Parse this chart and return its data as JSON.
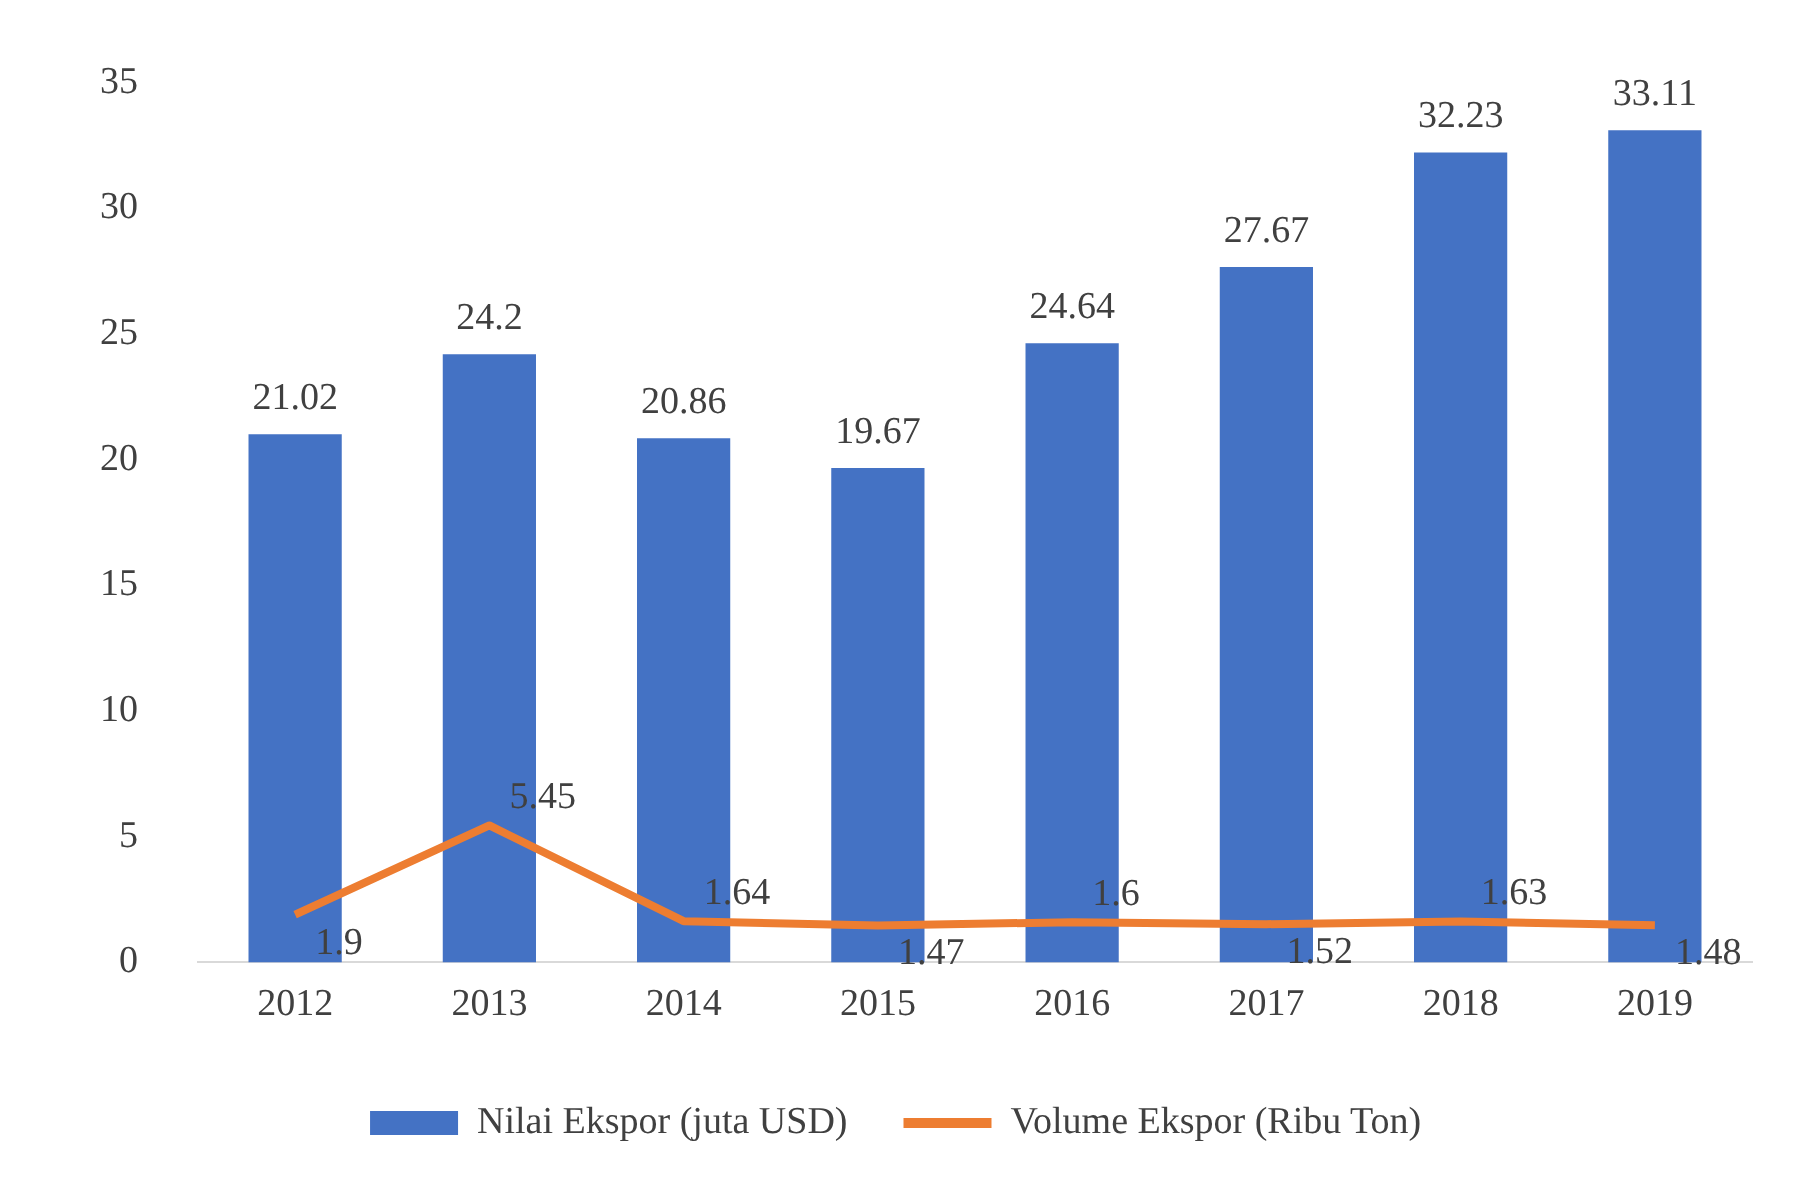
{
  "chart_data": {
    "type": "bar",
    "categories": [
      "2012",
      "2013",
      "2014",
      "2015",
      "2016",
      "2017",
      "2018",
      "2019"
    ],
    "series": [
      {
        "name": "Nilai Ekspor (juta USD)",
        "color": "#4472c4",
        "values": [
          21.02,
          24.2,
          20.86,
          19.67,
          24.64,
          27.67,
          32.23,
          33.11
        ]
      },
      {
        "name": "Volume Ekspor (Ribu Ton)",
        "type": "line",
        "color": "#ed7d31",
        "values": [
          1.9,
          5.45,
          1.64,
          1.47,
          1.6,
          1.52,
          1.63,
          1.48
        ]
      }
    ],
    "ylim": [
      0,
      35
    ],
    "yticks": [
      0,
      5,
      10,
      15,
      20,
      25,
      30,
      35
    ],
    "grid": false,
    "legend": "bottom",
    "data_labels": true,
    "marker": "none",
    "line_style": "solid"
  }
}
